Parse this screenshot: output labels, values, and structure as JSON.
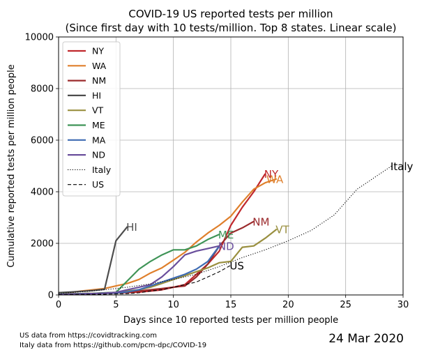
{
  "chart_data": {
    "type": "line",
    "title_lines": [
      "COVID-19 US reported tests per million",
      "(Since first day with 10 tests/million. Top 8 states. Linear scale)"
    ],
    "xlabel": "Days since 10 reported tests per million people",
    "ylabel": "Cumulative reported tests per million people",
    "xlim": [
      0,
      30
    ],
    "ylim": [
      0,
      10000
    ],
    "x_ticks": [
      0,
      5,
      10,
      15,
      20,
      25,
      30
    ],
    "y_ticks": [
      0,
      2000,
      4000,
      6000,
      8000,
      10000
    ],
    "grid": true,
    "legend_position": "top-left",
    "series": [
      {
        "name": "NY",
        "color": "#c0282d",
        "style": "solid",
        "x": [
          0,
          1,
          2,
          3,
          4,
          5,
          6,
          7,
          8,
          9,
          10,
          11,
          12,
          13,
          14,
          15,
          16,
          17,
          18
        ],
        "y": [
          30,
          40,
          50,
          60,
          70,
          80,
          90,
          110,
          150,
          200,
          300,
          400,
          800,
          1200,
          1700,
          2700,
          3400,
          4000,
          4700
        ],
        "label": "NY",
        "label_x": 17.9,
        "label_y": 4700
      },
      {
        "name": "WA",
        "color": "#df7f2b",
        "style": "solid",
        "x": [
          0,
          1,
          2,
          3,
          4,
          5,
          6,
          7,
          8,
          9,
          10,
          11,
          12,
          13,
          14,
          15,
          16,
          17,
          18,
          19
        ],
        "y": [
          80,
          100,
          150,
          200,
          250,
          350,
          450,
          600,
          850,
          1050,
          1350,
          1650,
          2050,
          2400,
          2700,
          3050,
          3600,
          4100,
          4350,
          4500
        ],
        "label": "WA",
        "label_x": 18.1,
        "label_y": 4500
      },
      {
        "name": "NM",
        "color": "#9b2a2c",
        "style": "solid",
        "x": [
          0,
          1,
          2,
          3,
          4,
          5,
          6,
          7,
          8,
          9,
          10,
          11,
          12,
          13,
          14,
          15,
          16,
          17
        ],
        "y": [
          20,
          30,
          40,
          50,
          60,
          70,
          100,
          150,
          200,
          250,
          300,
          350,
          700,
          1200,
          1900,
          2400,
          2600,
          2850
        ],
        "label": "NM",
        "label_x": 16.9,
        "label_y": 2850
      },
      {
        "name": "HI",
        "color": "#4d4d4d",
        "style": "solid",
        "x": [
          0,
          1,
          2,
          3,
          4,
          5,
          6
        ],
        "y": [
          90,
          110,
          140,
          170,
          220,
          2100,
          2650
        ],
        "label": "HI",
        "label_x": 5.9,
        "label_y": 2650
      },
      {
        "name": "VT",
        "color": "#998f3f",
        "style": "solid",
        "x": [
          0,
          1,
          2,
          3,
          4,
          5,
          6,
          7,
          8,
          9,
          10,
          11,
          12,
          13,
          14,
          15,
          16,
          17,
          18,
          19
        ],
        "y": [
          30,
          40,
          50,
          60,
          80,
          100,
          150,
          200,
          300,
          450,
          600,
          750,
          900,
          1050,
          1250,
          1300,
          1850,
          1900,
          2200,
          2550
        ],
        "label": "VT",
        "label_x": 18.9,
        "label_y": 2550
      },
      {
        "name": "ME",
        "color": "#3f9457",
        "style": "solid",
        "x": [
          0,
          1,
          2,
          3,
          4,
          5,
          6,
          7,
          8,
          9,
          10,
          11,
          12,
          13,
          14
        ],
        "y": [
          30,
          40,
          50,
          60,
          80,
          100,
          550,
          1000,
          1300,
          1550,
          1750,
          1750,
          1900,
          2150,
          2350
        ],
        "label": "ME",
        "label_x": 13.9,
        "label_y": 2350
      },
      {
        "name": "MA",
        "color": "#3e6bb3",
        "style": "solid",
        "x": [
          0,
          1,
          2,
          3,
          4,
          5,
          6,
          7,
          8,
          9,
          10,
          11,
          12,
          13,
          14
        ],
        "y": [
          20,
          30,
          40,
          50,
          60,
          80,
          120,
          200,
          350,
          500,
          650,
          800,
          1000,
          1300,
          1900
        ],
        "label": "",
        "label_x": 13.9,
        "label_y": 1900
      },
      {
        "name": "ND",
        "color": "#6a4f9c",
        "style": "solid",
        "x": [
          0,
          1,
          2,
          3,
          4,
          5,
          6,
          7,
          8,
          9,
          10,
          11,
          12,
          13,
          14
        ],
        "y": [
          20,
          30,
          40,
          50,
          70,
          100,
          200,
          300,
          400,
          700,
          1100,
          1550,
          1700,
          1800,
          1900
        ],
        "label": "ND",
        "label_x": 13.9,
        "label_y": 1900
      },
      {
        "name": "Italy",
        "color": "#000000",
        "style": "dotted",
        "x": [
          0,
          2,
          4,
          6,
          8,
          10,
          12,
          14,
          16,
          18,
          20,
          22,
          24,
          26,
          28,
          29
        ],
        "y": [
          60,
          120,
          200,
          300,
          430,
          600,
          800,
          1100,
          1450,
          1750,
          2100,
          2500,
          3100,
          4100,
          4700,
          5000
        ],
        "label": "Italy",
        "label_x": 28.9,
        "label_y": 5000
      },
      {
        "name": "US",
        "color": "#000000",
        "style": "dashed",
        "x": [
          0,
          2,
          4,
          6,
          7,
          8,
          9,
          10,
          11,
          12,
          13,
          14,
          15
        ],
        "y": [
          10,
          20,
          30,
          50,
          80,
          150,
          200,
          300,
          400,
          500,
          700,
          900,
          1150
        ],
        "label": "US",
        "label_x": 14.9,
        "label_y": 1150
      }
    ]
  },
  "footer": {
    "source_us": "US data from https://covidtracking.com",
    "source_italy": "Italy data from https://github.com/pcm-dpc/COVID-19",
    "date": "24 Mar 2020"
  }
}
